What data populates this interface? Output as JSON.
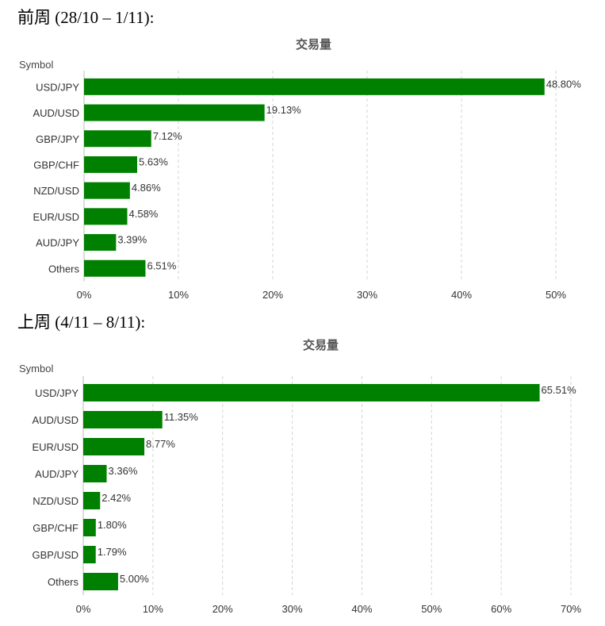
{
  "sections": [
    {
      "heading": "前周 (28/10 – 1/11):"
    },
    {
      "heading": "上周 (4/11 – 8/11):"
    }
  ],
  "chart_data": [
    {
      "type": "bar",
      "orientation": "horizontal",
      "title": "交易量",
      "ylabel": "Symbol",
      "categories": [
        "USD/JPY",
        "AUD/USD",
        "GBP/JPY",
        "GBP/CHF",
        "NZD/USD",
        "EUR/USD",
        "AUD/JPY",
        "Others"
      ],
      "values": [
        48.8,
        19.13,
        7.12,
        5.63,
        4.86,
        4.58,
        3.39,
        6.51
      ],
      "value_labels": [
        "48.80%",
        "19.13%",
        "7.12%",
        "5.63%",
        "4.86%",
        "4.58%",
        "3.39%",
        "6.51%"
      ],
      "xlim": [
        0,
        50
      ],
      "xticks": [
        "0%",
        "10%",
        "20%",
        "30%",
        "40%",
        "50%"
      ],
      "grid": true,
      "bar_color": "#008000"
    },
    {
      "type": "bar",
      "orientation": "horizontal",
      "title": "交易量",
      "ylabel": "Symbol",
      "categories": [
        "USD/JPY",
        "AUD/USD",
        "EUR/USD",
        "AUD/JPY",
        "NZD/USD",
        "GBP/CHF",
        "GBP/USD",
        "Others"
      ],
      "values": [
        65.51,
        11.35,
        8.77,
        3.36,
        2.42,
        1.8,
        1.79,
        5.0
      ],
      "value_labels": [
        "65.51%",
        "11.35%",
        "8.77%",
        "3.36%",
        "2.42%",
        "1.80%",
        "1.79%",
        "5.00%"
      ],
      "xlim": [
        0,
        70
      ],
      "xticks": [
        "0%",
        "10%",
        "20%",
        "30%",
        "40%",
        "50%",
        "60%",
        "70%"
      ],
      "grid": true,
      "bar_color": "#008000"
    }
  ]
}
